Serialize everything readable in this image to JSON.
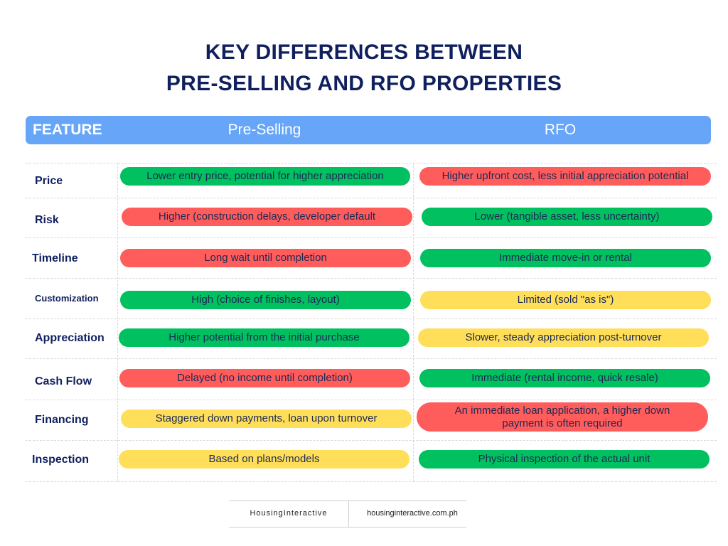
{
  "title": {
    "line1": "KEY DIFFERENCES BETWEEN",
    "line2": "PRE-SELLING AND RFO PROPERTIES"
  },
  "header": {
    "feature": "FEATURE",
    "preselling": "Pre-Selling",
    "rfo": "RFO"
  },
  "rows": [
    {
      "feature": "Price",
      "preselling": {
        "text": "Lower entry price, potential for higher appreciation",
        "color": "green"
      },
      "rfo": {
        "text": "Higher upfront cost, less initial appreciation potential",
        "color": "red"
      }
    },
    {
      "feature": "Risk",
      "preselling": {
        "text": "Higher (construction delays, developer default",
        "color": "red"
      },
      "rfo": {
        "text": "Lower (tangible asset, less uncertainty)",
        "color": "green"
      }
    },
    {
      "feature": "Timeline",
      "preselling": {
        "text": "Long wait until completion",
        "color": "red"
      },
      "rfo": {
        "text": "Immediate move-in or rental",
        "color": "green"
      }
    },
    {
      "feature": "Customization",
      "preselling": {
        "text": "High (choice of finishes, layout)",
        "color": "green"
      },
      "rfo": {
        "text": "Limited (sold \"as is\")",
        "color": "yellow"
      }
    },
    {
      "feature": "Appreciation",
      "preselling": {
        "text": "Higher potential from the initial purchase",
        "color": "green"
      },
      "rfo": {
        "text": "Slower, steady appreciation post-turnover",
        "color": "yellow"
      }
    },
    {
      "feature": "Cash Flow",
      "preselling": {
        "text": "Delayed (no income until completion)",
        "color": "red"
      },
      "rfo": {
        "text": "Immediate (rental income, quick resale)",
        "color": "green"
      }
    },
    {
      "feature": "Financing",
      "preselling": {
        "text": "Staggered down payments, loan upon turnover",
        "color": "yellow"
      },
      "rfo": {
        "text": "An immediate loan application, a higher down payment is often required",
        "color": "red"
      }
    },
    {
      "feature": "Inspection",
      "preselling": {
        "text": "Based on plans/models",
        "color": "yellow"
      },
      "rfo": {
        "text": "Physical inspection of the actual unit",
        "color": "green"
      }
    }
  ],
  "footer": {
    "brand": "HousingInteractive",
    "url": "housinginteractive.com.ph"
  },
  "colors": {
    "title": "#10205f",
    "header_bar": "#66a5f8",
    "green": "#00c060",
    "red": "#ff5c5c",
    "yellow": "#ffde59"
  }
}
